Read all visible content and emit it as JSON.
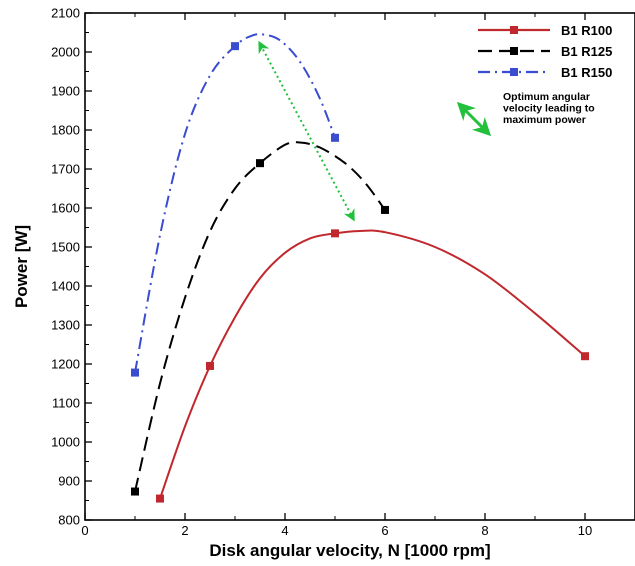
{
  "chart_data": {
    "type": "line",
    "xlabel": "Disk angular velocity, N [1000 rpm]",
    "ylabel": "Power [W]",
    "xlim": [
      0,
      11
    ],
    "ylim": [
      800,
      2100
    ],
    "xticks": [
      0,
      2,
      4,
      6,
      8,
      10
    ],
    "yticks": [
      800,
      900,
      1000,
      1100,
      1200,
      1300,
      1400,
      1500,
      1600,
      1700,
      1800,
      1900,
      2000,
      2100
    ],
    "grid": false,
    "legend_position": "top-right",
    "series": [
      {
        "name": "B1 R100",
        "color": "#c0282d",
        "line_style": "solid",
        "marker": "square",
        "points": [
          [
            1.5,
            855
          ],
          [
            2.5,
            1195
          ],
          [
            5,
            1535
          ],
          [
            10,
            1220
          ]
        ],
        "fit_curve": [
          [
            1.5,
            855
          ],
          [
            2,
            1040
          ],
          [
            2.5,
            1195
          ],
          [
            3,
            1320
          ],
          [
            3.5,
            1420
          ],
          [
            4,
            1485
          ],
          [
            4.5,
            1522
          ],
          [
            5,
            1535
          ],
          [
            5.5,
            1541
          ],
          [
            6,
            1538
          ],
          [
            7,
            1500
          ],
          [
            8,
            1430
          ],
          [
            9,
            1330
          ],
          [
            10,
            1220
          ]
        ]
      },
      {
        "name": "B1 R125",
        "color": "#000000",
        "line_style": "dashed",
        "marker": "square",
        "points": [
          [
            1,
            873
          ],
          [
            3.5,
            1715
          ],
          [
            6,
            1595
          ]
        ],
        "fit_curve": [
          [
            1,
            873
          ],
          [
            1.5,
            1150
          ],
          [
            2,
            1370
          ],
          [
            2.5,
            1540
          ],
          [
            3,
            1650
          ],
          [
            3.5,
            1715
          ],
          [
            4,
            1762
          ],
          [
            4.3,
            1768
          ],
          [
            4.7,
            1755
          ],
          [
            5.2,
            1715
          ],
          [
            5.6,
            1665
          ],
          [
            6,
            1595
          ]
        ]
      },
      {
        "name": "B1 R150",
        "color": "#3a4ccf",
        "line_style": "dash-dot",
        "marker": "square",
        "points": [
          [
            1,
            1178
          ],
          [
            3,
            2015
          ],
          [
            5,
            1780
          ]
        ],
        "fit_curve": [
          [
            1,
            1178
          ],
          [
            1.5,
            1530
          ],
          [
            2,
            1790
          ],
          [
            2.5,
            1940
          ],
          [
            3,
            2015
          ],
          [
            3.3,
            2040
          ],
          [
            3.55,
            2045
          ],
          [
            3.9,
            2030
          ],
          [
            4.3,
            1975
          ],
          [
            4.7,
            1880
          ],
          [
            5,
            1780
          ]
        ]
      }
    ],
    "annotation": {
      "text": [
        "Optimum angular",
        "velocity leading to",
        "maximum power"
      ],
      "arrow_color": "#22c03c",
      "arrow_from": [
        3.4,
        2045
      ],
      "arrow_to": [
        5.5,
        1540
      ]
    }
  }
}
